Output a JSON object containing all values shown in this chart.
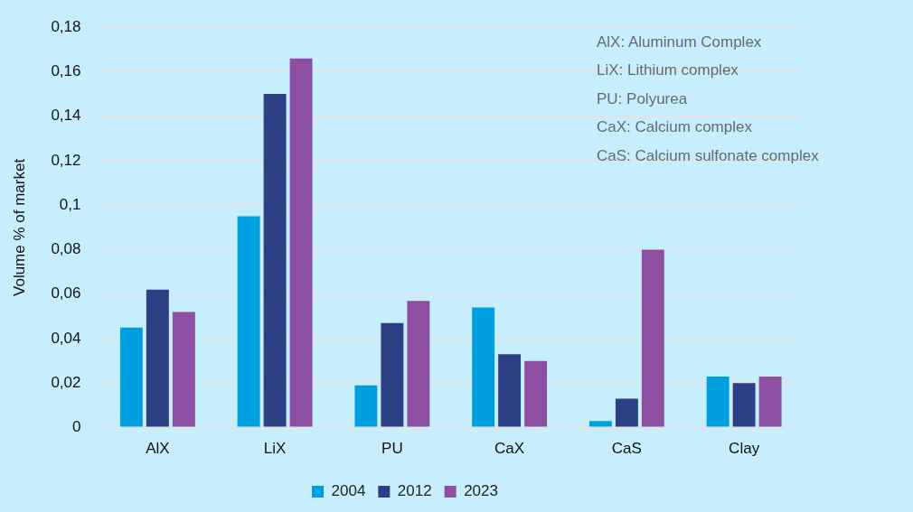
{
  "chart_data": {
    "type": "bar",
    "ylabel": "Volume % of market",
    "categories": [
      "AlX",
      "LiX",
      "PU",
      "CaX",
      "CaS",
      "Clay"
    ],
    "series": [
      {
        "name": "2004",
        "color": "#009fe0",
        "values": [
          0.045,
          0.095,
          0.019,
          0.054,
          0.003,
          0.023
        ]
      },
      {
        "name": "2012",
        "color": "#2c3e84",
        "values": [
          0.062,
          0.15,
          0.047,
          0.033,
          0.013,
          0.02
        ]
      },
      {
        "name": "2023",
        "color": "#8c4fa2",
        "values": [
          0.052,
          0.166,
          0.057,
          0.03,
          0.08,
          0.023
        ]
      }
    ],
    "ylim": [
      0,
      0.18
    ],
    "yticks": [
      0,
      {
        "value": 0.02,
        "label": "0,02"
      },
      {
        "value": 0.04,
        "label": "0,04"
      },
      {
        "value": 0.06,
        "label": "0,06"
      },
      {
        "value": 0.08,
        "label": "0,08"
      },
      {
        "value": 0.1,
        "label": "0,1"
      },
      {
        "value": 0.12,
        "label": "0,12"
      },
      {
        "value": 0.14,
        "label": "0,14"
      },
      {
        "value": 0.16,
        "label": "0,16"
      },
      {
        "value": 0.18,
        "label": "0,18"
      }
    ],
    "grid": "y",
    "legend": "bottom",
    "annotations": [
      "AlX: Aluminum Complex",
      "LiX: Lithium complex",
      "PU: Polyurea",
      "CaX: Calcium complex",
      "CaS: Calcium sulfonate complex"
    ]
  }
}
